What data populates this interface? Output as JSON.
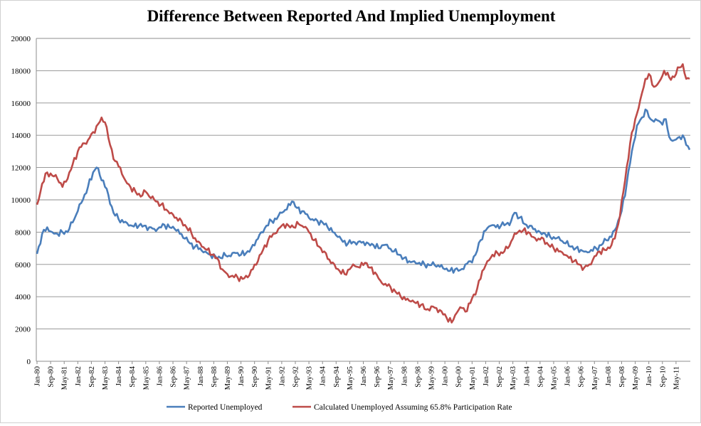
{
  "chart_data": {
    "type": "line",
    "title": "Difference Between Reported And Implied Unemployment",
    "xlabel": "",
    "ylabel": "",
    "ylim": [
      0,
      20000
    ],
    "y_ticks": [
      0,
      2000,
      4000,
      6000,
      8000,
      10000,
      12000,
      14000,
      16000,
      18000,
      20000
    ],
    "x_tick_labels": [
      "Jan-80",
      "Sep-80",
      "May-81",
      "Jan-82",
      "Sep-82",
      "May-83",
      "Jan-84",
      "Sep-84",
      "May-85",
      "Jan-86",
      "Sep-86",
      "May-87",
      "Jan-88",
      "Sep-88",
      "May-89",
      "Jan-90",
      "Sep-90",
      "May-91",
      "Jan-92",
      "Sep-92",
      "May-93",
      "Jan-94",
      "Sep-94",
      "May-95",
      "Jan-96",
      "Sep-96",
      "May-97",
      "Jan-98",
      "Sep-98",
      "May-99",
      "Jan-00",
      "Sep-00",
      "May-01",
      "Jan-02",
      "Sep-02",
      "May-03",
      "Jan-04",
      "Sep-04",
      "May-05",
      "Jan-06",
      "Sep-06",
      "May-07",
      "Jan-08",
      "Sep-08",
      "May-09",
      "Jan-10",
      "Sep-10",
      "May-11"
    ],
    "grid": true,
    "legend_position": "bottom",
    "series": [
      {
        "name": "Reported Unemployed",
        "color": "#4a7ebb",
        "points": [
          [
            "1980-01",
            6650
          ],
          [
            "1980-04",
            7900
          ],
          [
            "1980-07",
            8300
          ],
          [
            "1980-10",
            8000
          ],
          [
            "1981-01",
            7900
          ],
          [
            "1981-04",
            8000
          ],
          [
            "1981-07",
            8000
          ],
          [
            "1981-10",
            8600
          ],
          [
            "1982-01",
            9300
          ],
          [
            "1982-04",
            10000
          ],
          [
            "1982-07",
            10800
          ],
          [
            "1982-10",
            11700
          ],
          [
            "1982-12",
            12000
          ],
          [
            "1983-02",
            11500
          ],
          [
            "1983-04",
            11200
          ],
          [
            "1983-07",
            10300
          ],
          [
            "1983-10",
            9200
          ],
          [
            "1984-01",
            8800
          ],
          [
            "1984-04",
            8600
          ],
          [
            "1984-07",
            8400
          ],
          [
            "1984-10",
            8350
          ],
          [
            "1985-01",
            8400
          ],
          [
            "1985-04",
            8400
          ],
          [
            "1985-07",
            8300
          ],
          [
            "1985-10",
            8200
          ],
          [
            "1986-01",
            8300
          ],
          [
            "1986-04",
            8450
          ],
          [
            "1986-07",
            8300
          ],
          [
            "1986-10",
            8200
          ],
          [
            "1987-01",
            7900
          ],
          [
            "1987-04",
            7600
          ],
          [
            "1987-07",
            7300
          ],
          [
            "1987-10",
            7100
          ],
          [
            "1988-01",
            7000
          ],
          [
            "1988-04",
            6800
          ],
          [
            "1988-07",
            6600
          ],
          [
            "1988-10",
            6500
          ],
          [
            "1989-01",
            6400
          ],
          [
            "1989-04",
            6550
          ],
          [
            "1989-07",
            6500
          ],
          [
            "1989-10",
            6700
          ],
          [
            "1990-01",
            6600
          ],
          [
            "1990-04",
            6700
          ],
          [
            "1990-07",
            7000
          ],
          [
            "1990-10",
            7500
          ],
          [
            "1991-01",
            8000
          ],
          [
            "1991-04",
            8400
          ],
          [
            "1991-07",
            8700
          ],
          [
            "1991-10",
            8800
          ],
          [
            "1992-01",
            9200
          ],
          [
            "1992-04",
            9400
          ],
          [
            "1992-07",
            9900
          ],
          [
            "1992-10",
            9500
          ],
          [
            "1993-01",
            9300
          ],
          [
            "1993-04",
            9100
          ],
          [
            "1993-07",
            8800
          ],
          [
            "1993-10",
            8700
          ],
          [
            "1994-01",
            8600
          ],
          [
            "1994-04",
            8300
          ],
          [
            "1994-07",
            8000
          ],
          [
            "1994-10",
            7700
          ],
          [
            "1995-01",
            7400
          ],
          [
            "1995-04",
            7300
          ],
          [
            "1995-07",
            7400
          ],
          [
            "1995-10",
            7400
          ],
          [
            "1996-01",
            7400
          ],
          [
            "1996-04",
            7300
          ],
          [
            "1996-07",
            7200
          ],
          [
            "1996-10",
            7000
          ],
          [
            "1997-01",
            7200
          ],
          [
            "1997-04",
            7000
          ],
          [
            "1997-07",
            6800
          ],
          [
            "1997-10",
            6600
          ],
          [
            "1998-01",
            6400
          ],
          [
            "1998-04",
            6200
          ],
          [
            "1998-07",
            6200
          ],
          [
            "1998-10",
            6100
          ],
          [
            "1999-01",
            6000
          ],
          [
            "1999-04",
            5950
          ],
          [
            "1999-07",
            5950
          ],
          [
            "1999-10",
            5850
          ],
          [
            "2000-01",
            5700
          ],
          [
            "2000-04",
            5600
          ],
          [
            "2000-07",
            5700
          ],
          [
            "2000-10",
            5650
          ],
          [
            "2001-01",
            6000
          ],
          [
            "2001-04",
            6200
          ],
          [
            "2001-07",
            6600
          ],
          [
            "2001-10",
            7500
          ],
          [
            "2002-01",
            8100
          ],
          [
            "2002-04",
            8400
          ],
          [
            "2002-07",
            8300
          ],
          [
            "2002-10",
            8400
          ],
          [
            "2003-01",
            8500
          ],
          [
            "2003-04",
            8700
          ],
          [
            "2003-06",
            9200
          ],
          [
            "2003-09",
            8900
          ],
          [
            "2003-12",
            8500
          ],
          [
            "2004-03",
            8400
          ],
          [
            "2004-06",
            8200
          ],
          [
            "2004-09",
            8000
          ],
          [
            "2004-12",
            7900
          ],
          [
            "2005-03",
            7700
          ],
          [
            "2005-06",
            7600
          ],
          [
            "2005-09",
            7500
          ],
          [
            "2005-12",
            7300
          ],
          [
            "2006-03",
            7100
          ],
          [
            "2006-06",
            7000
          ],
          [
            "2006-09",
            6900
          ],
          [
            "2006-12",
            6800
          ],
          [
            "2007-03",
            6900
          ],
          [
            "2007-06",
            7000
          ],
          [
            "2007-09",
            7200
          ],
          [
            "2007-12",
            7500
          ],
          [
            "2008-03",
            7700
          ],
          [
            "2008-06",
            8300
          ],
          [
            "2008-09",
            9300
          ],
          [
            "2008-12",
            11000
          ],
          [
            "2009-03",
            13000
          ],
          [
            "2009-06",
            14600
          ],
          [
            "2009-09",
            15100
          ],
          [
            "2009-11",
            15600
          ],
          [
            "2010-02",
            15000
          ],
          [
            "2010-05",
            15000
          ],
          [
            "2010-08",
            14800
          ],
          [
            "2010-11",
            15000
          ],
          [
            "2011-01",
            13900
          ],
          [
            "2011-04",
            13700
          ],
          [
            "2011-07",
            13900
          ],
          [
            "2011-09",
            14000
          ],
          [
            "2011-11",
            13400
          ],
          [
            "2012-01",
            13100
          ]
        ]
      },
      {
        "name": "Calculated Unemployed Assuming 65.8% Participation Rate",
        "color": "#be4b48",
        "points": [
          [
            "1980-01",
            9700
          ],
          [
            "1980-04",
            11000
          ],
          [
            "1980-07",
            11700
          ],
          [
            "1980-10",
            11500
          ],
          [
            "1981-01",
            11300
          ],
          [
            "1981-04",
            10800
          ],
          [
            "1981-07",
            11300
          ],
          [
            "1981-10",
            12200
          ],
          [
            "1982-01",
            13000
          ],
          [
            "1982-04",
            13500
          ],
          [
            "1982-07",
            13700
          ],
          [
            "1982-10",
            14200
          ],
          [
            "1983-01",
            14700
          ],
          [
            "1983-03",
            15100
          ],
          [
            "1983-05",
            14800
          ],
          [
            "1983-08",
            13400
          ],
          [
            "1983-11",
            12400
          ],
          [
            "1984-02",
            12000
          ],
          [
            "1984-05",
            11200
          ],
          [
            "1984-08",
            10800
          ],
          [
            "1984-11",
            10500
          ],
          [
            "1985-02",
            10200
          ],
          [
            "1985-05",
            10500
          ],
          [
            "1985-08",
            10100
          ],
          [
            "1985-11",
            9900
          ],
          [
            "1986-02",
            9700
          ],
          [
            "1986-05",
            9400
          ],
          [
            "1986-08",
            9200
          ],
          [
            "1986-11",
            8900
          ],
          [
            "1987-02",
            8700
          ],
          [
            "1987-05",
            8300
          ],
          [
            "1987-08",
            7900
          ],
          [
            "1987-11",
            7400
          ],
          [
            "1988-02",
            7100
          ],
          [
            "1988-05",
            6900
          ],
          [
            "1988-08",
            6600
          ],
          [
            "1988-11",
            6400
          ],
          [
            "1989-02",
            5700
          ],
          [
            "1989-05",
            5400
          ],
          [
            "1989-08",
            5300
          ],
          [
            "1989-11",
            5200
          ],
          [
            "1990-02",
            5100
          ],
          [
            "1990-05",
            5200
          ],
          [
            "1990-08",
            5700
          ],
          [
            "1990-11",
            6200
          ],
          [
            "1991-02",
            6900
          ],
          [
            "1991-05",
            7500
          ],
          [
            "1991-08",
            7900
          ],
          [
            "1991-11",
            8200
          ],
          [
            "1992-02",
            8500
          ],
          [
            "1992-05",
            8400
          ],
          [
            "1992-08",
            8300
          ],
          [
            "1992-11",
            8500
          ],
          [
            "1993-02",
            8300
          ],
          [
            "1993-05",
            8000
          ],
          [
            "1993-08",
            7500
          ],
          [
            "1993-11",
            7100
          ],
          [
            "1994-02",
            6800
          ],
          [
            "1994-05",
            6300
          ],
          [
            "1994-08",
            6000
          ],
          [
            "1994-11",
            5600
          ],
          [
            "1995-02",
            5400
          ],
          [
            "1995-05",
            5700
          ],
          [
            "1995-08",
            5900
          ],
          [
            "1995-11",
            5800
          ],
          [
            "1996-02",
            6100
          ],
          [
            "1996-05",
            5800
          ],
          [
            "1996-08",
            5500
          ],
          [
            "1996-11",
            5000
          ],
          [
            "1997-02",
            4800
          ],
          [
            "1997-05",
            4600
          ],
          [
            "1997-08",
            4300
          ],
          [
            "1997-11",
            4000
          ],
          [
            "1998-02",
            3800
          ],
          [
            "1998-05",
            3700
          ],
          [
            "1998-08",
            3600
          ],
          [
            "1998-11",
            3500
          ],
          [
            "1999-02",
            3200
          ],
          [
            "1999-05",
            3400
          ],
          [
            "1999-08",
            3300
          ],
          [
            "1999-11",
            3100
          ],
          [
            "2000-02",
            2700
          ],
          [
            "2000-05",
            2400
          ],
          [
            "2000-08",
            3000
          ],
          [
            "2000-11",
            3300
          ],
          [
            "2001-02",
            3100
          ],
          [
            "2001-05",
            3900
          ],
          [
            "2001-08",
            4500
          ],
          [
            "2001-11",
            5600
          ],
          [
            "2002-02",
            6200
          ],
          [
            "2002-05",
            6600
          ],
          [
            "2002-08",
            6700
          ],
          [
            "2002-11",
            6700
          ],
          [
            "2003-02",
            7000
          ],
          [
            "2003-05",
            7600
          ],
          [
            "2003-08",
            8000
          ],
          [
            "2003-11",
            8100
          ],
          [
            "2004-02",
            8000
          ],
          [
            "2004-05",
            7700
          ],
          [
            "2004-08",
            7600
          ],
          [
            "2004-11",
            7600
          ],
          [
            "2005-02",
            7200
          ],
          [
            "2005-05",
            7000
          ],
          [
            "2005-08",
            6800
          ],
          [
            "2005-11",
            6600
          ],
          [
            "2006-02",
            6400
          ],
          [
            "2006-05",
            6200
          ],
          [
            "2006-08",
            6000
          ],
          [
            "2006-11",
            5800
          ],
          [
            "2007-02",
            6000
          ],
          [
            "2007-05",
            6500
          ],
          [
            "2007-08",
            6800
          ],
          [
            "2007-11",
            6900
          ],
          [
            "2008-02",
            7000
          ],
          [
            "2008-05",
            7600
          ],
          [
            "2008-08",
            9000
          ],
          [
            "2008-11",
            11200
          ],
          [
            "2009-02",
            13500
          ],
          [
            "2009-05",
            15000
          ],
          [
            "2009-08",
            16200
          ],
          [
            "2009-11",
            17500
          ],
          [
            "2010-01",
            17800
          ],
          [
            "2010-04",
            17000
          ],
          [
            "2010-07",
            17300
          ],
          [
            "2010-10",
            18000
          ],
          [
            "2011-01",
            17600
          ],
          [
            "2011-04",
            17600
          ],
          [
            "2011-07",
            18200
          ],
          [
            "2011-09",
            18400
          ],
          [
            "2011-11",
            17500
          ],
          [
            "2012-01",
            17500
          ]
        ]
      }
    ]
  }
}
